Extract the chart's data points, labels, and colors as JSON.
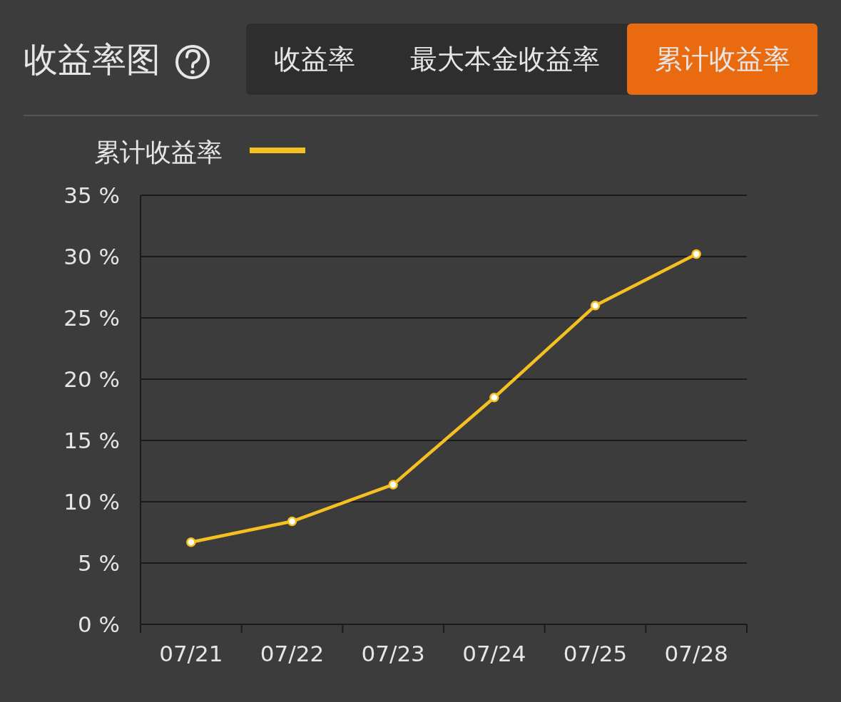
{
  "chart_data": {
    "type": "line",
    "title": "收益率图",
    "annotations": [
      "收益率",
      "最大本金收益率",
      "累计收益率"
    ],
    "categories": [
      "07/21",
      "07/22",
      "07/23",
      "07/24",
      "07/25",
      "07/28"
    ],
    "series": [
      {
        "name": "累计收益率",
        "color": "#f5c022",
        "values": [
          6.7,
          8.4,
          11.4,
          18.5,
          26.0,
          30.2
        ]
      }
    ],
    "ylim": [
      0,
      35
    ],
    "yticks": [
      {
        "value": 0,
        "label": "0 %"
      },
      {
        "value": 5,
        "label": "5 %"
      },
      {
        "value": 10,
        "label": "10 %"
      },
      {
        "value": 15,
        "label": "15 %"
      },
      {
        "value": 20,
        "label": "20 %"
      },
      {
        "value": 25,
        "label": "25 %"
      },
      {
        "value": 30,
        "label": "30 %"
      },
      {
        "value": 35,
        "label": "35 %"
      }
    ],
    "grid": "y",
    "legend": "top left",
    "marker": "circle",
    "line_style": "solid"
  }
}
